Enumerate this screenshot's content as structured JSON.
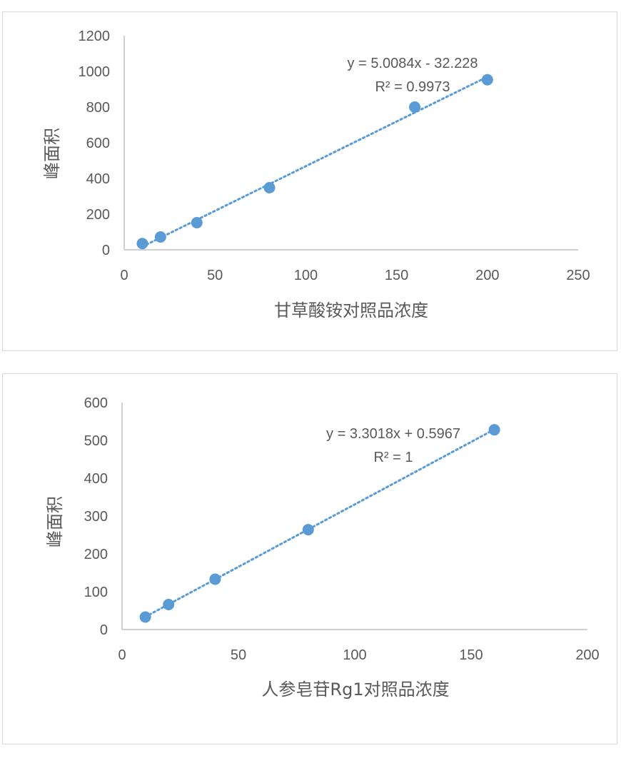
{
  "chart_data": [
    {
      "type": "scatter",
      "title": "",
      "xlabel": "甘草酸铵对照品浓度",
      "ylabel": "峰面积",
      "xlim": [
        0,
        250
      ],
      "ylim": [
        0,
        1200
      ],
      "xticks": [
        "0",
        "50",
        "100",
        "150",
        "200",
        "250"
      ],
      "yticks": [
        "0",
        "200",
        "400",
        "600",
        "800",
        "1000",
        "1200"
      ],
      "points": {
        "x": [
          10,
          20,
          40,
          80,
          160,
          200
        ],
        "y": [
          35,
          72,
          152,
          348,
          800,
          953
        ]
      },
      "trendline": {
        "type": "linear",
        "slope": 5.0084,
        "intercept": -32.228,
        "style": "dotted",
        "x_range": [
          10,
          200
        ]
      },
      "equation": "y = 5.0084x - 32.228",
      "r_squared": "R² = 0.9973",
      "grid": false,
      "color": "#5b9bd5"
    },
    {
      "type": "scatter",
      "title": "",
      "xlabel": "人参皂苷Rg1对照品浓度",
      "ylabel": "峰面积",
      "xlim": [
        0,
        200
      ],
      "ylim": [
        0,
        600
      ],
      "xticks": [
        "0",
        "50",
        "100",
        "150",
        "200"
      ],
      "yticks": [
        "0",
        "100",
        "200",
        "300",
        "400",
        "500",
        "600"
      ],
      "points": {
        "x": [
          10,
          20,
          40,
          80,
          160
        ],
        "y": [
          33,
          66,
          133,
          264,
          528
        ]
      },
      "trendline": {
        "type": "linear",
        "slope": 3.3018,
        "intercept": 0.5967,
        "style": "dotted",
        "x_range": [
          10,
          160
        ]
      },
      "equation": "y = 3.3018x + 0.5967",
      "r_squared": "R² = 1",
      "grid": false,
      "color": "#5b9bd5"
    }
  ]
}
